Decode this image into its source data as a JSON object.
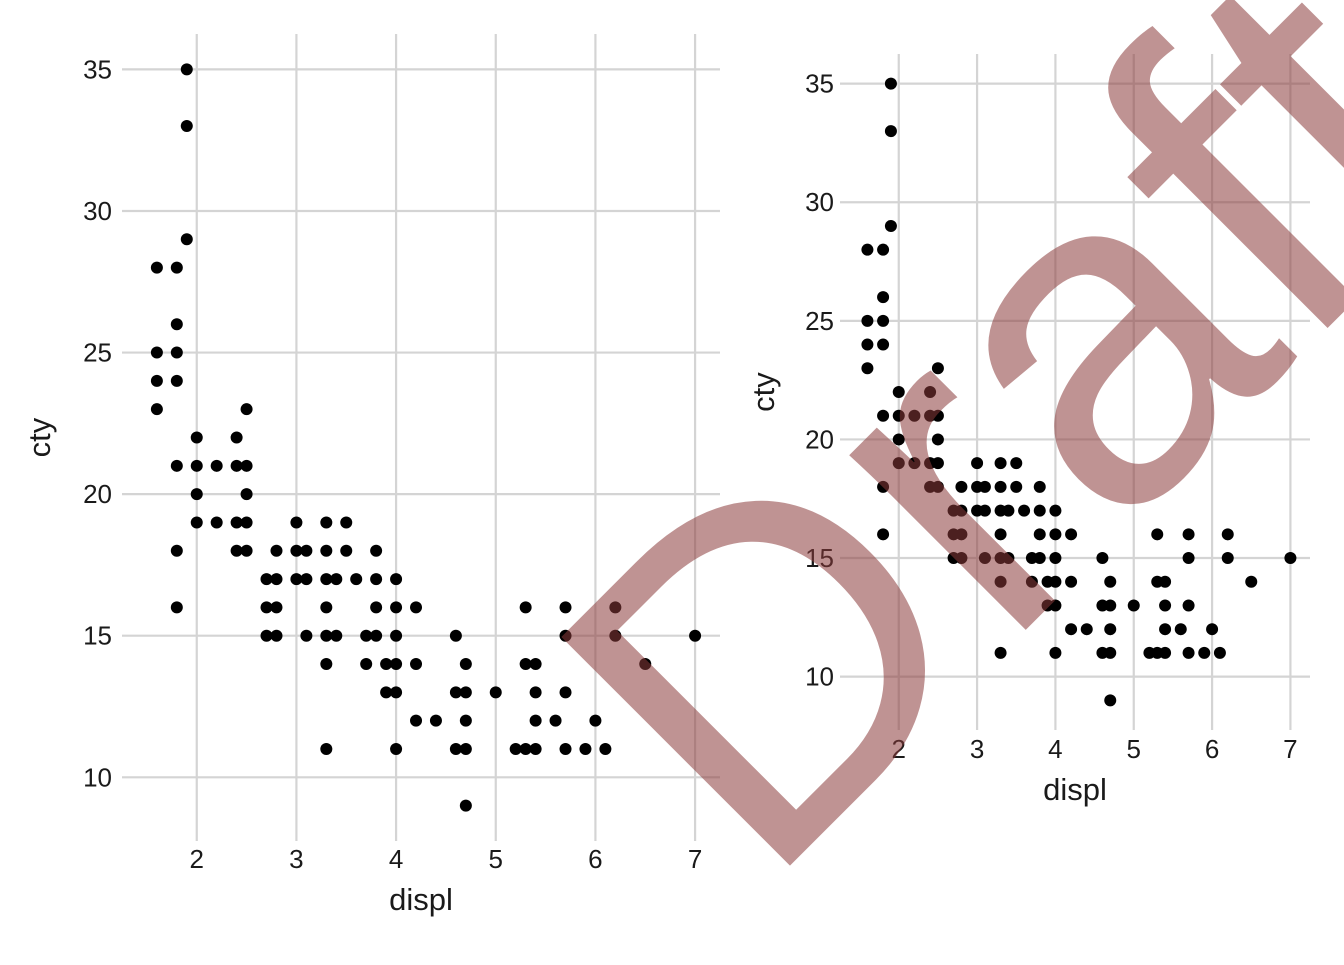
{
  "chart_data": [
    {
      "type": "scatter",
      "title": "",
      "xlabel": "displ",
      "ylabel": "cty",
      "xlim": [
        1.25,
        7.25
      ],
      "ylim": [
        7.75,
        36.25
      ],
      "xticks": [
        2,
        3,
        4,
        5,
        6,
        7
      ],
      "yticks": [
        10,
        15,
        20,
        25,
        30,
        35
      ],
      "grid": true,
      "legend": "none",
      "point_color": "#000000",
      "points": [
        [
          1.6,
          23
        ],
        [
          1.6,
          24
        ],
        [
          1.6,
          25
        ],
        [
          1.6,
          28
        ],
        [
          1.8,
          16
        ],
        [
          1.8,
          18
        ],
        [
          1.8,
          21
        ],
        [
          1.8,
          24
        ],
        [
          1.8,
          25
        ],
        [
          1.8,
          26
        ],
        [
          1.8,
          28
        ],
        [
          1.9,
          29
        ],
        [
          1.9,
          33
        ],
        [
          1.9,
          35
        ],
        [
          2.0,
          19
        ],
        [
          2.0,
          20
        ],
        [
          2.0,
          21
        ],
        [
          2.0,
          22
        ],
        [
          2.2,
          19
        ],
        [
          2.2,
          21
        ],
        [
          2.4,
          18
        ],
        [
          2.4,
          19
        ],
        [
          2.4,
          21
        ],
        [
          2.4,
          22
        ],
        [
          2.5,
          18
        ],
        [
          2.5,
          19
        ],
        [
          2.5,
          20
        ],
        [
          2.5,
          21
        ],
        [
          2.5,
          23
        ],
        [
          2.7,
          15
        ],
        [
          2.7,
          16
        ],
        [
          2.7,
          17
        ],
        [
          2.8,
          15
        ],
        [
          2.8,
          16
        ],
        [
          2.8,
          17
        ],
        [
          2.8,
          18
        ],
        [
          3.0,
          17
        ],
        [
          3.0,
          18
        ],
        [
          3.0,
          19
        ],
        [
          3.1,
          15
        ],
        [
          3.1,
          17
        ],
        [
          3.1,
          18
        ],
        [
          3.3,
          11
        ],
        [
          3.3,
          14
        ],
        [
          3.3,
          15
        ],
        [
          3.3,
          16
        ],
        [
          3.3,
          17
        ],
        [
          3.3,
          18
        ],
        [
          3.3,
          19
        ],
        [
          3.4,
          15
        ],
        [
          3.4,
          17
        ],
        [
          3.5,
          18
        ],
        [
          3.5,
          19
        ],
        [
          3.6,
          17
        ],
        [
          3.7,
          14
        ],
        [
          3.7,
          15
        ],
        [
          3.8,
          15
        ],
        [
          3.8,
          16
        ],
        [
          3.8,
          17
        ],
        [
          3.8,
          18
        ],
        [
          3.9,
          13
        ],
        [
          3.9,
          14
        ],
        [
          4.0,
          11
        ],
        [
          4.0,
          13
        ],
        [
          4.0,
          14
        ],
        [
          4.0,
          15
        ],
        [
          4.0,
          16
        ],
        [
          4.0,
          17
        ],
        [
          4.2,
          12
        ],
        [
          4.2,
          14
        ],
        [
          4.2,
          16
        ],
        [
          4.4,
          12
        ],
        [
          4.6,
          11
        ],
        [
          4.6,
          13
        ],
        [
          4.6,
          15
        ],
        [
          4.7,
          9
        ],
        [
          4.7,
          11
        ],
        [
          4.7,
          12
        ],
        [
          4.7,
          13
        ],
        [
          4.7,
          14
        ],
        [
          5.0,
          13
        ],
        [
          5.2,
          11
        ],
        [
          5.3,
          11
        ],
        [
          5.3,
          14
        ],
        [
          5.3,
          16
        ],
        [
          5.4,
          11
        ],
        [
          5.4,
          12
        ],
        [
          5.4,
          13
        ],
        [
          5.4,
          14
        ],
        [
          5.6,
          12
        ],
        [
          5.7,
          11
        ],
        [
          5.7,
          13
        ],
        [
          5.7,
          15
        ],
        [
          5.7,
          16
        ],
        [
          5.9,
          11
        ],
        [
          6.0,
          12
        ],
        [
          6.1,
          11
        ],
        [
          6.2,
          15
        ],
        [
          6.2,
          16
        ],
        [
          6.5,
          14
        ],
        [
          7.0,
          15
        ]
      ]
    },
    {
      "type": "scatter",
      "title": "",
      "xlabel": "displ",
      "ylabel": "cty",
      "xlim": [
        1.25,
        7.25
      ],
      "ylim": [
        7.75,
        36.25
      ],
      "xticks": [
        2,
        3,
        4,
        5,
        6,
        7
      ],
      "yticks": [
        10,
        15,
        20,
        25,
        30,
        35
      ],
      "grid": true,
      "legend": "none",
      "point_color": "#000000",
      "points": [
        [
          1.6,
          23
        ],
        [
          1.6,
          24
        ],
        [
          1.6,
          25
        ],
        [
          1.6,
          28
        ],
        [
          1.8,
          16
        ],
        [
          1.8,
          18
        ],
        [
          1.8,
          21
        ],
        [
          1.8,
          24
        ],
        [
          1.8,
          25
        ],
        [
          1.8,
          26
        ],
        [
          1.8,
          28
        ],
        [
          1.9,
          29
        ],
        [
          1.9,
          33
        ],
        [
          1.9,
          35
        ],
        [
          2.0,
          19
        ],
        [
          2.0,
          20
        ],
        [
          2.0,
          21
        ],
        [
          2.0,
          22
        ],
        [
          2.2,
          19
        ],
        [
          2.2,
          21
        ],
        [
          2.4,
          18
        ],
        [
          2.4,
          19
        ],
        [
          2.4,
          21
        ],
        [
          2.4,
          22
        ],
        [
          2.5,
          18
        ],
        [
          2.5,
          19
        ],
        [
          2.5,
          20
        ],
        [
          2.5,
          21
        ],
        [
          2.5,
          23
        ],
        [
          2.7,
          15
        ],
        [
          2.7,
          16
        ],
        [
          2.7,
          17
        ],
        [
          2.8,
          15
        ],
        [
          2.8,
          16
        ],
        [
          2.8,
          17
        ],
        [
          2.8,
          18
        ],
        [
          3.0,
          17
        ],
        [
          3.0,
          18
        ],
        [
          3.0,
          19
        ],
        [
          3.1,
          15
        ],
        [
          3.1,
          17
        ],
        [
          3.1,
          18
        ],
        [
          3.3,
          11
        ],
        [
          3.3,
          14
        ],
        [
          3.3,
          15
        ],
        [
          3.3,
          16
        ],
        [
          3.3,
          17
        ],
        [
          3.3,
          18
        ],
        [
          3.3,
          19
        ],
        [
          3.4,
          15
        ],
        [
          3.4,
          17
        ],
        [
          3.5,
          18
        ],
        [
          3.5,
          19
        ],
        [
          3.6,
          17
        ],
        [
          3.7,
          14
        ],
        [
          3.7,
          15
        ],
        [
          3.8,
          15
        ],
        [
          3.8,
          16
        ],
        [
          3.8,
          17
        ],
        [
          3.8,
          18
        ],
        [
          3.9,
          13
        ],
        [
          3.9,
          14
        ],
        [
          4.0,
          11
        ],
        [
          4.0,
          13
        ],
        [
          4.0,
          14
        ],
        [
          4.0,
          15
        ],
        [
          4.0,
          16
        ],
        [
          4.0,
          17
        ],
        [
          4.2,
          12
        ],
        [
          4.2,
          14
        ],
        [
          4.2,
          16
        ],
        [
          4.4,
          12
        ],
        [
          4.6,
          11
        ],
        [
          4.6,
          13
        ],
        [
          4.6,
          15
        ],
        [
          4.7,
          9
        ],
        [
          4.7,
          11
        ],
        [
          4.7,
          12
        ],
        [
          4.7,
          13
        ],
        [
          4.7,
          14
        ],
        [
          5.0,
          13
        ],
        [
          5.2,
          11
        ],
        [
          5.3,
          11
        ],
        [
          5.3,
          14
        ],
        [
          5.3,
          16
        ],
        [
          5.4,
          11
        ],
        [
          5.4,
          12
        ],
        [
          5.4,
          13
        ],
        [
          5.4,
          14
        ],
        [
          5.6,
          12
        ],
        [
          5.7,
          11
        ],
        [
          5.7,
          13
        ],
        [
          5.7,
          15
        ],
        [
          5.7,
          16
        ],
        [
          5.9,
          11
        ],
        [
          6.0,
          12
        ],
        [
          6.1,
          11
        ],
        [
          6.2,
          15
        ],
        [
          6.2,
          16
        ],
        [
          6.5,
          14
        ],
        [
          7.0,
          15
        ]
      ]
    }
  ],
  "watermark": {
    "text": "Draft",
    "color": "#8b3a3a"
  }
}
